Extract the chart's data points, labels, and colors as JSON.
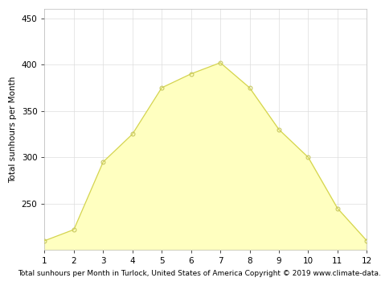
{
  "months": [
    1,
    2,
    3,
    4,
    5,
    6,
    7,
    8,
    9,
    10,
    11,
    12
  ],
  "sunhours": [
    210,
    222,
    295,
    325,
    375,
    390,
    402,
    375,
    330,
    300,
    245,
    210
  ],
  "line_color": "#d4d450",
  "fill_color": "#fffff0",
  "fill_color2": "#ffffc8",
  "marker_color": "#c8c860",
  "marker_size": 3.5,
  "line_width": 0.9,
  "ylabel": "Total sunhours per Month",
  "xlabel": "Total sunhours per Month in Turlock, United States of America Copyright © 2019 www.climate-data.org",
  "ylim": [
    200,
    460
  ],
  "xlim": [
    1,
    12
  ],
  "yticks": [
    250,
    300,
    350,
    400,
    450
  ],
  "xticks": [
    1,
    2,
    3,
    4,
    5,
    6,
    7,
    8,
    9,
    10,
    11,
    12
  ],
  "grid_color": "#dddddd",
  "background_color": "#ffffff",
  "xlabel_fontsize": 6.5,
  "ylabel_fontsize": 7.5,
  "tick_fontsize": 7.5
}
